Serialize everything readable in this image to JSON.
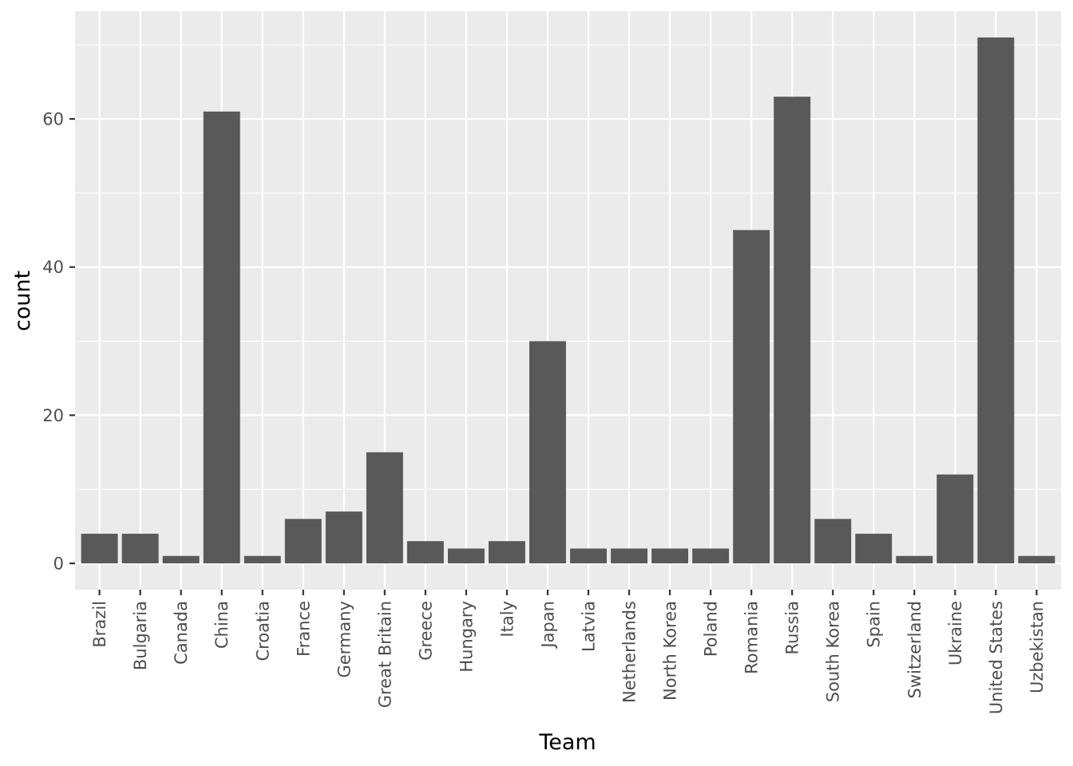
{
  "chart_data": {
    "type": "bar",
    "title": "",
    "xlabel": "Team",
    "ylabel": "count",
    "categories": [
      "Brazil",
      "Bulgaria",
      "Canada",
      "China",
      "Croatia",
      "France",
      "Germany",
      "Great Britain",
      "Greece",
      "Hungary",
      "Italy",
      "Japan",
      "Latvia",
      "Netherlands",
      "North Korea",
      "Poland",
      "Romania",
      "Russia",
      "South Korea",
      "Spain",
      "Switzerland",
      "Ukraine",
      "United States",
      "Uzbekistan"
    ],
    "values": [
      4,
      4,
      1,
      61,
      1,
      6,
      7,
      15,
      3,
      2,
      3,
      30,
      2,
      2,
      2,
      2,
      45,
      63,
      6,
      4,
      1,
      12,
      71,
      1
    ],
    "yticks": [
      0,
      20,
      40,
      60
    ],
    "ylim": [
      -3.55,
      74.55
    ],
    "grid": true,
    "legend": "none",
    "colors": {
      "bar": "#595959",
      "panel": "#ebebeb",
      "grid": "#ffffff"
    }
  }
}
